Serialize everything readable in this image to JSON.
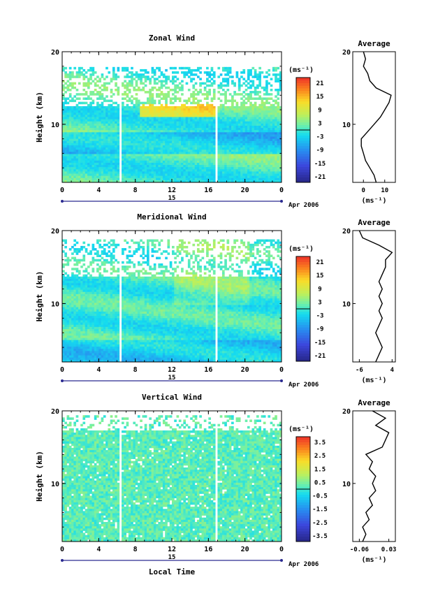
{
  "figure": {
    "x_axis_label": "Local Time",
    "date_label": "15",
    "month_label": "Apr 2006"
  },
  "chart_data": [
    {
      "type": "heatmap",
      "title": "Zonal Wind",
      "ylabel": "Height (km)",
      "ylim": [
        2,
        20
      ],
      "yticks": [
        "10",
        "20"
      ],
      "xticks": [
        "0",
        "4",
        "8",
        "12",
        "16",
        "20",
        "0"
      ],
      "xlim": [
        0,
        24
      ],
      "colorbar": {
        "unit": "(ms⁻¹)",
        "ticks": [
          "21",
          "15",
          "9",
          "3",
          "-3",
          "-9",
          "-15",
          "-21"
        ],
        "range": [
          -24,
          24
        ]
      },
      "profile": {
        "title": "Average",
        "xticks": [
          "0",
          "10"
        ],
        "xlim": [
          -5,
          15
        ],
        "unit": "(ms⁻¹)",
        "heights": [
          2,
          3,
          4,
          5,
          6,
          7,
          8,
          9,
          10,
          11,
          12,
          13,
          14,
          15,
          16,
          17,
          18,
          19,
          20
        ],
        "values": [
          6,
          5,
          3,
          1,
          0,
          -1,
          -1,
          2,
          5,
          8,
          10,
          12,
          13,
          6,
          3,
          2,
          0,
          1,
          0
        ]
      }
    },
    {
      "type": "heatmap",
      "title": "Meridional Wind",
      "ylabel": "Height (km)",
      "ylim": [
        2,
        20
      ],
      "yticks": [
        "10",
        "20"
      ],
      "xticks": [
        "0",
        "4",
        "8",
        "12",
        "16",
        "20",
        "0"
      ],
      "xlim": [
        0,
        24
      ],
      "colorbar": {
        "unit": "(ms⁻¹)",
        "ticks": [
          "21",
          "15",
          "9",
          "3",
          "-3",
          "-9",
          "-15",
          "-21"
        ],
        "range": [
          -24,
          24
        ]
      },
      "profile": {
        "title": "Average",
        "xticks": [
          "-6",
          "4"
        ],
        "xlim": [
          -8,
          5
        ],
        "unit": "(ms⁻¹)",
        "heights": [
          2,
          3,
          4,
          5,
          6,
          7,
          8,
          9,
          10,
          11,
          12,
          13,
          14,
          15,
          16,
          17,
          18,
          19,
          20
        ],
        "values": [
          -1,
          0,
          1,
          0,
          -1,
          0,
          1,
          0,
          1,
          0,
          1,
          0,
          1,
          2,
          2,
          4,
          0,
          -5,
          -6
        ]
      }
    },
    {
      "type": "heatmap",
      "title": "Vertical Wind",
      "ylabel": "Height (km)",
      "ylim": [
        2,
        20
      ],
      "yticks": [
        "10",
        "20"
      ],
      "xticks": [
        "0",
        "4",
        "8",
        "12",
        "16",
        "20",
        "0"
      ],
      "xlim": [
        0,
        24
      ],
      "colorbar": {
        "unit": "(ms⁻¹)",
        "ticks": [
          "3.5",
          "2.5",
          "1.5",
          "0.5",
          "-0.5",
          "-1.5",
          "-2.5",
          "-3.5"
        ],
        "range": [
          -4,
          4
        ]
      },
      "profile": {
        "title": "Average",
        "xticks": [
          "-0.06",
          "0.03"
        ],
        "xlim": [
          -0.08,
          0.05
        ],
        "unit": "(ms⁻¹)",
        "heights": [
          2,
          3,
          4,
          5,
          6,
          7,
          8,
          9,
          10,
          11,
          12,
          13,
          14,
          15,
          16,
          17,
          18,
          19,
          20
        ],
        "values": [
          -0.05,
          -0.04,
          -0.05,
          -0.03,
          -0.04,
          -0.02,
          -0.03,
          -0.01,
          -0.02,
          -0.01,
          -0.03,
          -0.02,
          -0.04,
          0.01,
          0.02,
          0.03,
          -0.01,
          0.02,
          -0.02
        ]
      }
    }
  ]
}
